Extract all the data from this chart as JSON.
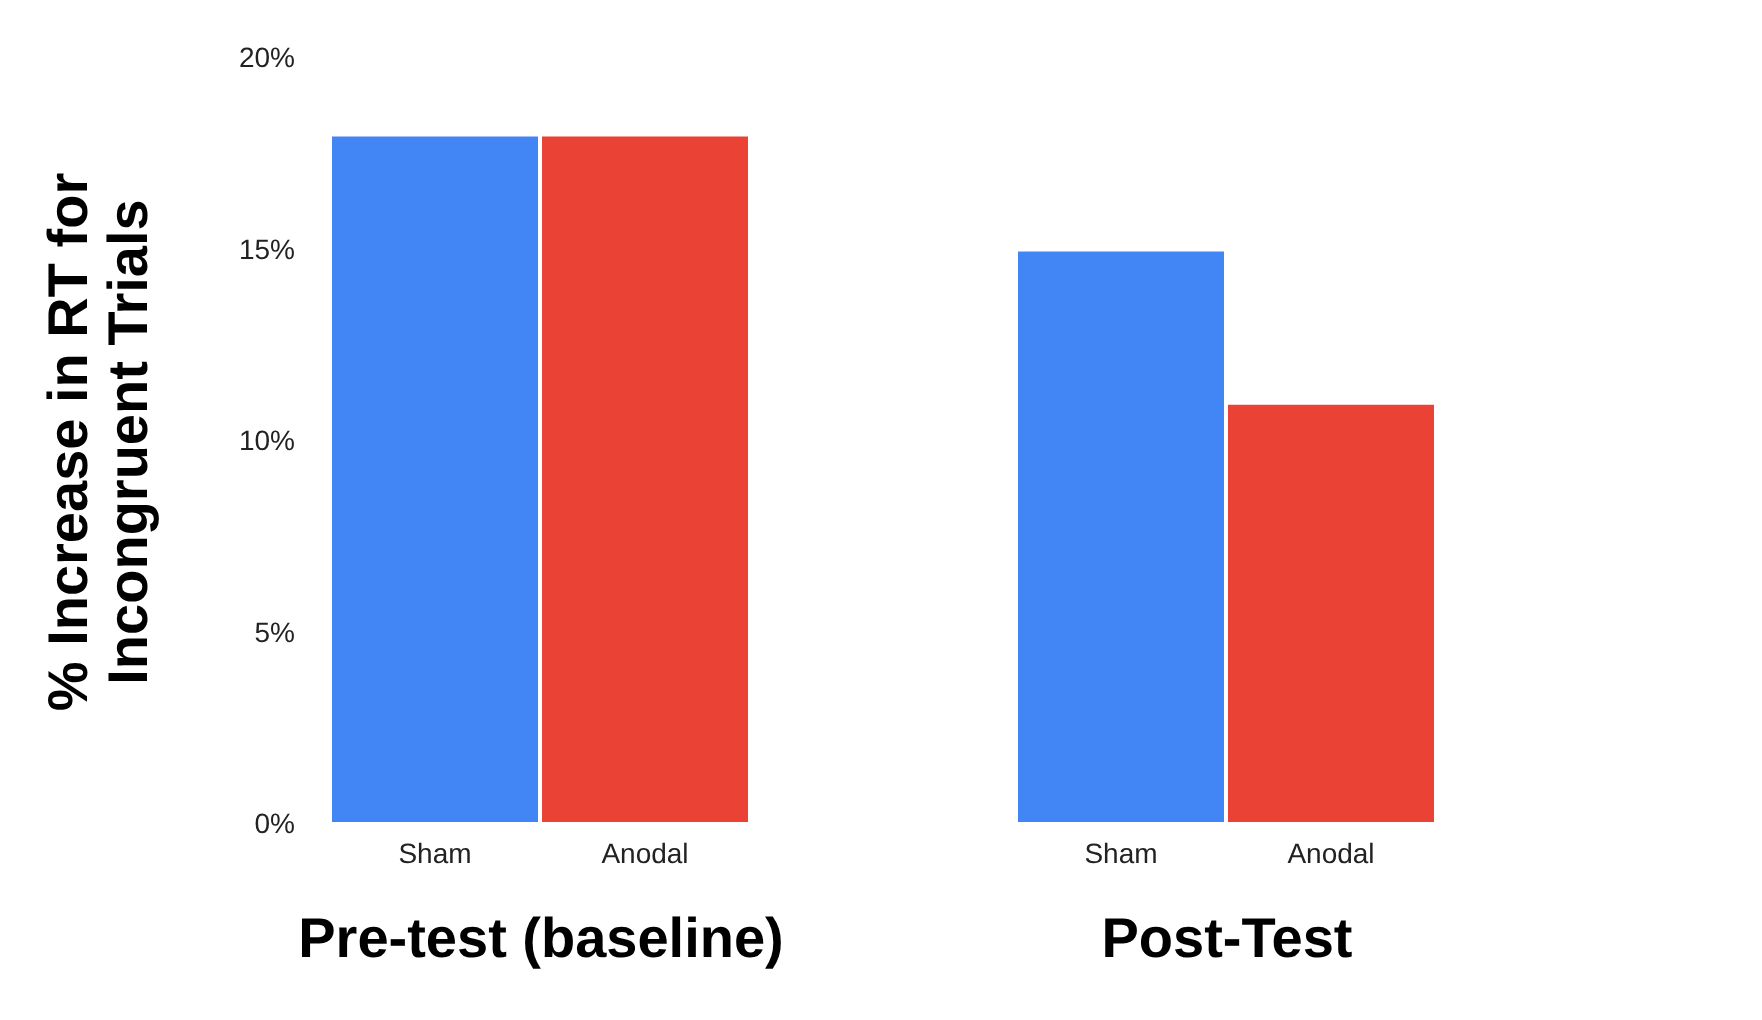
{
  "chart_data": [
    {
      "type": "bar",
      "categories": [
        "Sham",
        "Anodal"
      ],
      "values": [
        18,
        18
      ],
      "colors": [
        "#4285f4",
        "#ea4335"
      ],
      "xlabel": "Pre-test (baseline)",
      "ylabel": "% Increase in RT for Incongruent Trials",
      "ylim": [
        0,
        20
      ],
      "yticks": [
        {
          "value": 0,
          "label": "0%"
        },
        {
          "value": 5,
          "label": "5%"
        },
        {
          "value": 10,
          "label": "10%"
        },
        {
          "value": 15,
          "label": "15%"
        },
        {
          "value": 20,
          "label": "20%"
        }
      ],
      "grid": false
    },
    {
      "type": "bar",
      "categories": [
        "Sham",
        "Anodal"
      ],
      "values": [
        15,
        11
      ],
      "colors": [
        "#4285f4",
        "#ea4335"
      ],
      "xlabel": "Post-Test",
      "ylim": [
        0,
        20
      ],
      "tick_labels": "x",
      "grid": false
    }
  ]
}
